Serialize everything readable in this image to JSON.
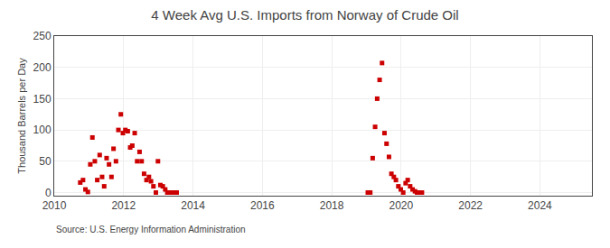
{
  "chart_data": {
    "type": "scatter",
    "title": "4 Week Avg U.S. Imports from Norway of Crude Oil",
    "y_label": "Thousand Barrels per Day",
    "annotations": [
      "Source: U.S. Energy Information Administration"
    ],
    "x": [
      2010.75,
      2010.83,
      2010.9,
      2010.97,
      2011.04,
      2011.1,
      2011.17,
      2011.24,
      2011.31,
      2011.38,
      2011.44,
      2011.51,
      2011.58,
      2011.65,
      2011.71,
      2011.78,
      2011.85,
      2011.92,
      2011.98,
      2012.05,
      2012.12,
      2012.19,
      2012.25,
      2012.32,
      2012.39,
      2012.46,
      2012.52,
      2012.59,
      2012.66,
      2012.73,
      2012.79,
      2012.86,
      2012.93,
      2012.99,
      2013.06,
      2013.13,
      2013.2,
      2013.26,
      2013.33,
      2013.4,
      2013.47,
      2013.53,
      2019.04,
      2019.11,
      2019.18,
      2019.25,
      2019.31,
      2019.38,
      2019.45,
      2019.52,
      2019.58,
      2019.65,
      2019.72,
      2019.79,
      2019.85,
      2019.92,
      2019.99,
      2020.06,
      2020.13,
      2020.19,
      2020.26,
      2020.33,
      2020.4,
      2020.46,
      2020.53,
      2020.6
    ],
    "values": [
      16,
      20,
      5,
      1,
      45,
      88,
      50,
      20,
      60,
      25,
      10,
      55,
      45,
      25,
      70,
      50,
      100,
      125,
      95,
      100,
      98,
      72,
      75,
      95,
      50,
      65,
      50,
      30,
      20,
      25,
      18,
      10,
      0,
      50,
      12,
      10,
      5,
      0,
      0,
      0,
      0,
      0,
      0,
      0,
      55,
      105,
      150,
      180,
      207,
      95,
      78,
      57,
      30,
      25,
      20,
      10,
      5,
      0,
      15,
      20,
      10,
      5,
      2,
      0,
      0,
      0
    ],
    "color": "#cc0000",
    "marker": "square",
    "xlim": [
      2010,
      2025.5
    ],
    "ylim": [
      -5,
      250
    ],
    "xticks": [
      2010,
      2012,
      2014,
      2016,
      2018,
      2020,
      2022,
      2024
    ],
    "yticks": [
      0,
      50,
      100,
      150,
      200,
      250
    ],
    "grid": true
  }
}
